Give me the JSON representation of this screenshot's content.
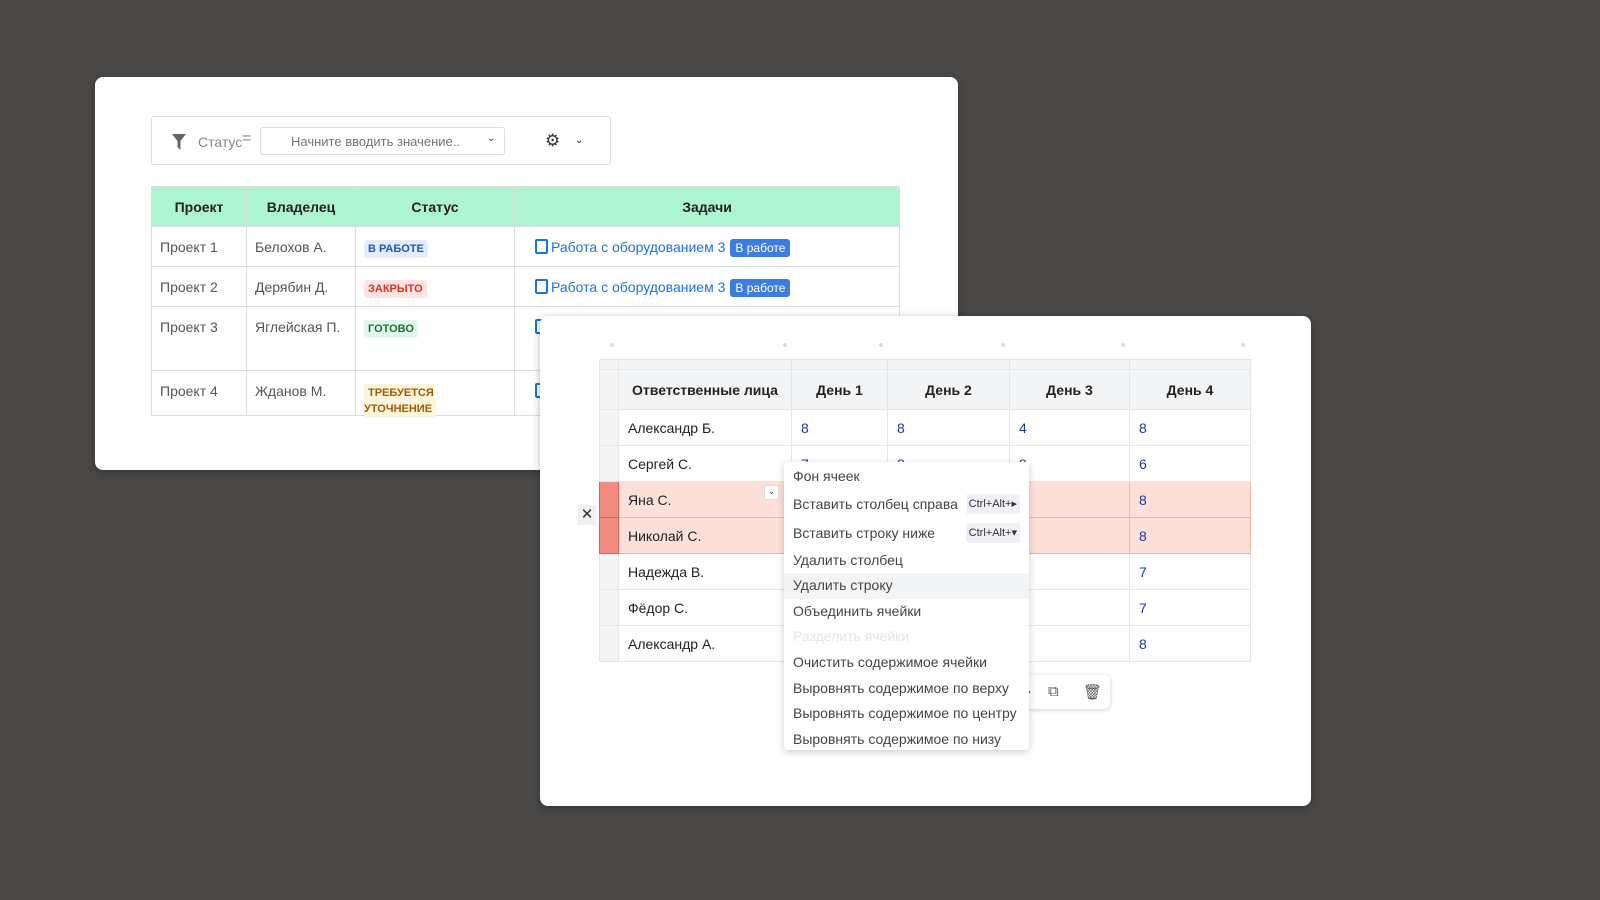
{
  "filter": {
    "field": "Статус",
    "operator": "=",
    "placeholder": "Начните вводить значение.."
  },
  "projects": {
    "headers": [
      "Проект",
      "Владелец",
      "Статус",
      "Задачи"
    ],
    "rows": [
      {
        "project": "Проект 1",
        "owner": "Белохов А.",
        "status": "В РАБОТЕ",
        "task": "Работа с оборудованием 3",
        "task_badge": "В работе"
      },
      {
        "project": "Проект 2",
        "owner": "Дерябин Д.",
        "status": "ЗАКРЫТО",
        "task": "Работа с оборудованием 3",
        "task_badge": "В работе"
      },
      {
        "project": "Проект 3",
        "owner": "Яглейская П.",
        "status": "ГОТОВО"
      },
      {
        "project": "Проект 4",
        "owner": "Жданов М.",
        "status": "ТРЕБУЕТСЯ УТОЧНЕНИЕ"
      }
    ],
    "status_colors": {
      "В РАБОТЕ": [
        "#e3edfd",
        "#1a56c8"
      ],
      "ЗАКРЫТО": [
        "#fde4e1",
        "#e0301e"
      ],
      "ГОТОВО": [
        "#e2f8ec",
        "#16703e"
      ],
      "ТРЕБУЕТСЯ УТОЧНЕНИЕ": [
        "#fdf4dc",
        "#a15c00"
      ]
    }
  },
  "hours": {
    "headers": [
      "Ответственные лица",
      "День 1",
      "День 2",
      "День 3",
      "День 4"
    ],
    "rows": [
      [
        "Александр Б.",
        "8",
        "8",
        "4",
        "8"
      ],
      [
        "Сергей С.",
        "7",
        "8",
        "8",
        "6"
      ],
      [
        "Яна С.",
        "",
        "",
        "",
        "8"
      ],
      [
        "Николай С.",
        "",
        "",
        "",
        "8"
      ],
      [
        "Надежда В.",
        "",
        "",
        "",
        "7"
      ],
      [
        "Фёдор С.",
        "",
        "",
        "",
        "7"
      ],
      [
        "Александр А.",
        "",
        "",
        "",
        "8"
      ]
    ],
    "selected_rows": [
      "Яна С.",
      "Николай С."
    ]
  },
  "context_menu": [
    {
      "label": "Фон ячеек"
    },
    {
      "label": "Вставить столбец справа",
      "shortcut": "Ctrl+Alt+▸"
    },
    {
      "label": "Вставить строку ниже",
      "shortcut": "Ctrl+Alt+▾"
    },
    {
      "label": "Удалить столбец"
    },
    {
      "label": "Удалить строку",
      "hover": true
    },
    {
      "label": "Объединить ячейки"
    },
    {
      "label": "Разделить ячейки",
      "disabled": true
    },
    {
      "label": "Очистить содержимое ячейки"
    },
    {
      "label": "Выровнять содержимое по верху"
    },
    {
      "label": "Выровнять содержимое по центру"
    },
    {
      "label": "Выровнять содержимое по низу"
    }
  ],
  "accent": {
    "header_green": "#adf5d1",
    "selection": "#fde0da",
    "link": "#1a73e8"
  }
}
